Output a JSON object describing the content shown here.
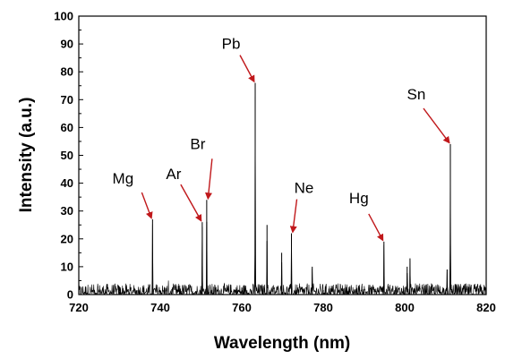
{
  "chart_data": {
    "type": "line",
    "title": "",
    "xlabel": "Wavelength (nm)",
    "ylabel": "Intensity (a.u.)",
    "xlim": [
      720,
      820
    ],
    "ylim": [
      0,
      100
    ],
    "x_ticks": [
      720,
      740,
      760,
      780,
      800,
      820
    ],
    "y_ticks": [
      0,
      10,
      20,
      30,
      40,
      50,
      60,
      70,
      80,
      90,
      100
    ],
    "grid": false,
    "legend": "none",
    "colors": {
      "line": "#000000",
      "arrow": "#c0181b"
    },
    "series": [
      {
        "baseline_noise_max": 4,
        "peaks": [
          {
            "x": 738.1,
            "y": 27
          },
          {
            "x": 750.3,
            "y": 26
          },
          {
            "x": 751.4,
            "y": 34
          },
          {
            "x": 763.3,
            "y": 76
          },
          {
            "x": 766.2,
            "y": 25
          },
          {
            "x": 769.8,
            "y": 15
          },
          {
            "x": 772.2,
            "y": 22
          },
          {
            "x": 777.3,
            "y": 10
          },
          {
            "x": 794.9,
            "y": 19
          },
          {
            "x": 800.6,
            "y": 10
          },
          {
            "x": 801.3,
            "y": 13
          },
          {
            "x": 810.4,
            "y": 9
          },
          {
            "x": 811.2,
            "y": 54
          }
        ]
      }
    ],
    "annotations": [
      {
        "text": "Mg",
        "x": 738.1,
        "y": 27
      },
      {
        "text": "Ar",
        "x": 750.3,
        "y": 26
      },
      {
        "text": "Br",
        "x": 751.4,
        "y": 34
      },
      {
        "text": "Pb",
        "x": 763.3,
        "y": 76
      },
      {
        "text": "Ne",
        "x": 772.2,
        "y": 22
      },
      {
        "text": "Hg",
        "x": 794.9,
        "y": 19
      },
      {
        "text": "Sn",
        "x": 811.2,
        "y": 54
      }
    ]
  }
}
